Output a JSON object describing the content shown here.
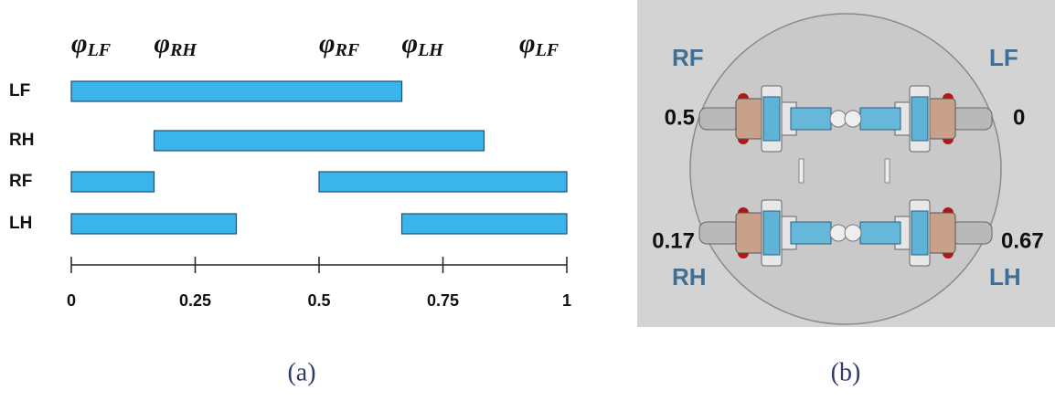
{
  "chart_data": {
    "type": "range-bar",
    "categories": [
      "LF",
      "RH",
      "RF",
      "LH"
    ],
    "rows": [
      {
        "segments": [
          {
            "start": 0,
            "end": 0.667
          }
        ]
      },
      {
        "segments": [
          {
            "start": 0.167,
            "end": 0.833
          }
        ]
      },
      {
        "segments": [
          {
            "start": 0,
            "end": 0.167
          },
          {
            "start": 0.5,
            "end": 1
          }
        ]
      },
      {
        "segments": [
          {
            "start": 0,
            "end": 0.333
          },
          {
            "start": 0.667,
            "end": 1
          }
        ]
      }
    ],
    "color": "#3bb4ec",
    "phase_markers": [
      {
        "value": 0,
        "symbol": "φ",
        "subscript": "LF"
      },
      {
        "value": 0.167,
        "symbol": "φ",
        "subscript": "RH"
      },
      {
        "value": 0.5,
        "symbol": "φ",
        "subscript": "RF"
      },
      {
        "value": 0.667,
        "symbol": "φ",
        "subscript": "LH"
      },
      {
        "value": 1,
        "symbol": "φ",
        "subscript": "LF"
      }
    ],
    "xlim": [
      0,
      1
    ],
    "xticks": [
      0,
      0.25,
      0.5,
      0.75,
      1
    ],
    "caption": "(a)"
  },
  "diagram": {
    "caption": "(b)",
    "legs": [
      {
        "label": "RF",
        "phase": "0.5"
      },
      {
        "label": "LF",
        "phase": "0"
      },
      {
        "label": "RH",
        "phase": "0.17"
      },
      {
        "label": "LH",
        "phase": "0.67"
      }
    ]
  }
}
